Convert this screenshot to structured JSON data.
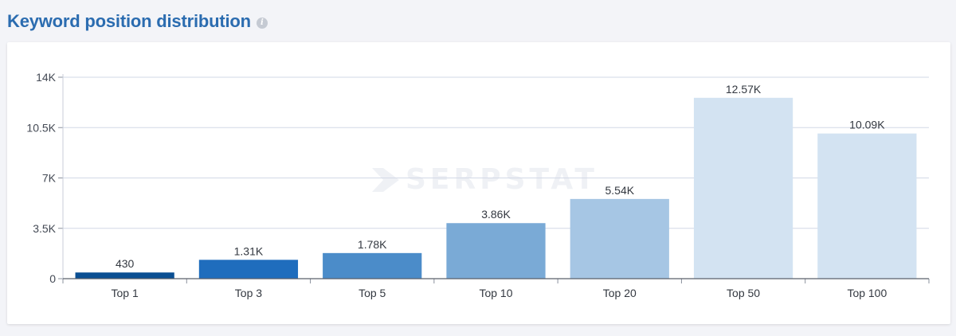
{
  "header": {
    "title": "Keyword position distribution"
  },
  "watermark": {
    "text": "SERPSTAT"
  },
  "chart_data": {
    "type": "bar",
    "categories": [
      "Top 1",
      "Top 3",
      "Top 5",
      "Top 10",
      "Top 20",
      "Top 50",
      "Top 100"
    ],
    "values": [
      430,
      1310,
      1780,
      3860,
      5540,
      12570,
      10090
    ],
    "data_labels": [
      "430",
      "1.31K",
      "1.78K",
      "3.86K",
      "5.54K",
      "12.57K",
      "10.09K"
    ],
    "bar_colors": [
      "#0b4f93",
      "#1f6dbd",
      "#4b8cc9",
      "#7aaad6",
      "#a6c6e4",
      "#d3e3f2",
      "#d3e3f2"
    ],
    "ylim": [
      0,
      14000
    ],
    "yticks": [
      0,
      3500,
      7000,
      10500,
      14000
    ],
    "ytick_labels": [
      "0",
      "3.5K",
      "7K",
      "10.5K",
      "14K"
    ],
    "grid": true,
    "title": "",
    "xlabel": "",
    "ylabel": ""
  }
}
